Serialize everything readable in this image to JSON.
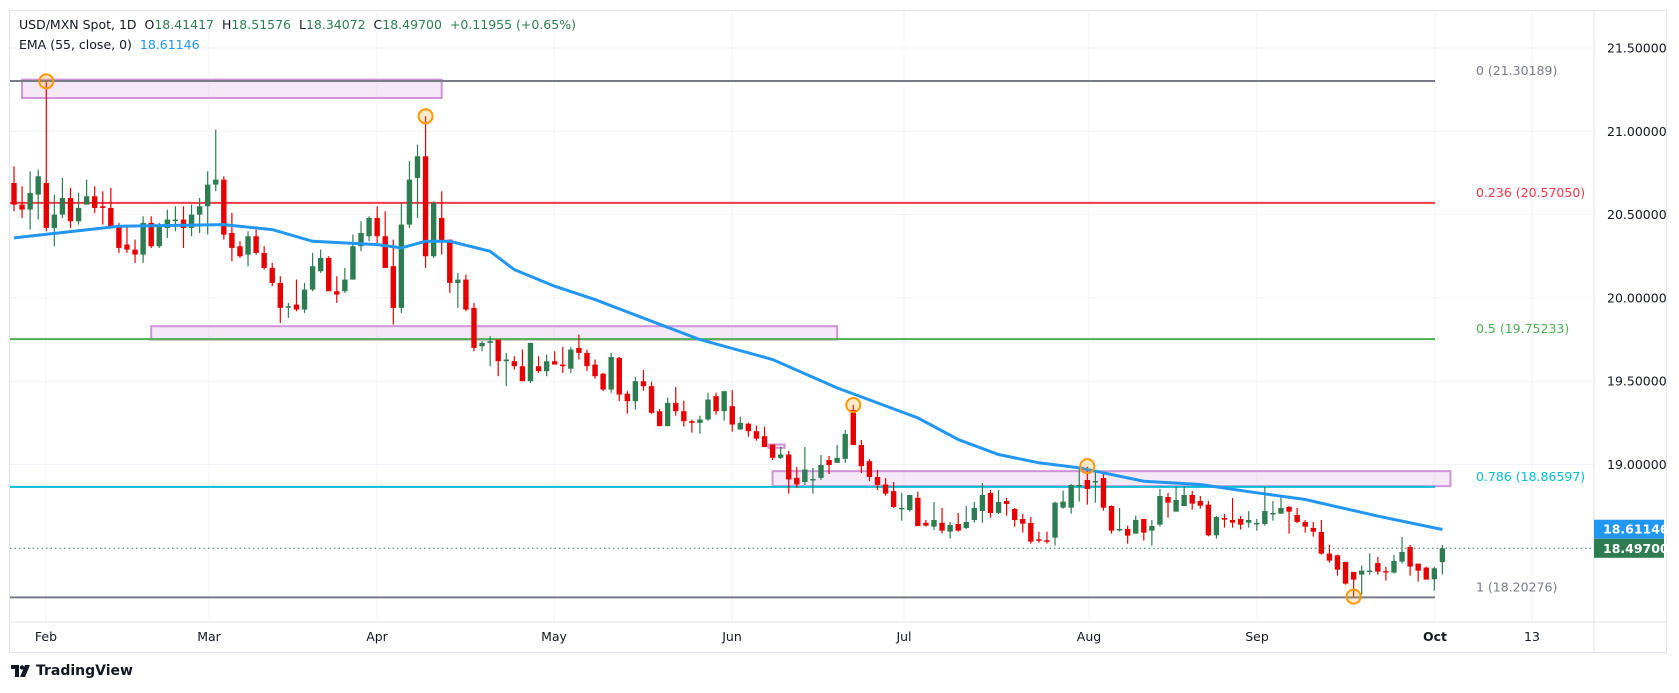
{
  "legend": {
    "symbol": "USD/MXN Spot, 1D",
    "o_label": "O",
    "o": "18.41417",
    "h_label": "H",
    "h": "18.51576",
    "l_label": "L",
    "l": "18.34072",
    "c_label": "C",
    "c": "18.49700",
    "change": "+0.11955 (+0.65%)",
    "ema_label": "EMA (55, close, 0)",
    "ema_value": "18.61146"
  },
  "colors": {
    "up": "#2e7d52",
    "down": "#e60000",
    "ema": "#2196f3",
    "last": "#2e7d52",
    "fib0": "#787b86",
    "fib236": "#f23645",
    "fib5": "#4caf50",
    "fib786": "#00bcd4",
    "fib1": "#787b86",
    "zone": "#ce93d8"
  },
  "branding": "TradingView",
  "chart_data": {
    "type": "candlestick",
    "title": "USD/MXN Spot, 1D",
    "ylim": [
      18.05,
      21.72
    ],
    "price_ticks": [
      "21.50000",
      "21.00000",
      "20.50000",
      "20.00000",
      "19.50000",
      "19.00000"
    ],
    "time_ticks": [
      "Feb",
      "Mar",
      "Apr",
      "May",
      "Jun",
      "Jul",
      "Aug",
      "Sep",
      "Oct",
      "13"
    ],
    "price_badges": [
      {
        "label": "18.61146",
        "value": 18.61146,
        "kind": "ema"
      },
      {
        "label": "18.49700",
        "value": 18.497,
        "kind": "last"
      }
    ],
    "fib_levels": [
      {
        "label": "0 (21.30189)",
        "value": 21.30189,
        "key": "fib0"
      },
      {
        "label": "0.236 (20.57050)",
        "value": 20.5705,
        "key": "fib236"
      },
      {
        "label": "0.5 (19.75233)",
        "value": 19.75233,
        "key": "fib5"
      },
      {
        "label": "0.786 (18.86597)",
        "value": 18.86597,
        "key": "fib786"
      },
      {
        "label": "1 (18.20276)",
        "value": 18.20276,
        "key": "fib1"
      }
    ],
    "zones": [
      {
        "from_bar": 2,
        "to_bar": 54,
        "high": 21.31,
        "low": 21.2
      },
      {
        "from_bar": 18,
        "to_bar": 103,
        "high": 19.83,
        "low": 19.75
      },
      {
        "from_bar": 95,
        "to_bar": 179,
        "high": 18.96,
        "low": 18.87
      },
      {
        "from_bar": 94.5,
        "to_bar": 96.5,
        "high": 19.12,
        "low": 19.1
      }
    ],
    "swing_markers": [
      {
        "bar": 5,
        "value": 21.3
      },
      {
        "bar": 52,
        "value": 21.09
      },
      {
        "bar": 105,
        "value": 19.357
      },
      {
        "bar": 134,
        "value": 18.99
      },
      {
        "bar": 167,
        "value": 18.207
      }
    ],
    "ema": [
      [
        1,
        20.36
      ],
      [
        14,
        20.43
      ],
      [
        27,
        20.44
      ],
      [
        33,
        20.41
      ],
      [
        38,
        20.34
      ],
      [
        46,
        20.32
      ],
      [
        49,
        20.3
      ],
      [
        52,
        20.34
      ],
      [
        55,
        20.34
      ],
      [
        60,
        20.28
      ],
      [
        63,
        20.17
      ],
      [
        68,
        20.07
      ],
      [
        73,
        19.99
      ],
      [
        80,
        19.86
      ],
      [
        86,
        19.75
      ],
      [
        95,
        19.63
      ],
      [
        103,
        19.46
      ],
      [
        108,
        19.37
      ],
      [
        113,
        19.28
      ],
      [
        118,
        19.15
      ],
      [
        123,
        19.06
      ],
      [
        128,
        19.01
      ],
      [
        133,
        18.98
      ],
      [
        141,
        18.9
      ],
      [
        148,
        18.88
      ],
      [
        155,
        18.83
      ],
      [
        161,
        18.79
      ],
      [
        170,
        18.69
      ],
      [
        175,
        18.64
      ],
      [
        178,
        18.61
      ]
    ],
    "ohlc": [
      [
        20.69,
        20.79,
        20.52,
        20.56
      ],
      [
        20.56,
        20.67,
        20.48,
        20.53
      ],
      [
        20.53,
        20.76,
        20.41,
        20.63
      ],
      [
        20.62,
        20.77,
        20.47,
        20.73
      ],
      [
        20.69,
        21.3,
        20.4,
        20.42
      ],
      [
        20.42,
        20.62,
        20.31,
        20.5
      ],
      [
        20.5,
        20.72,
        20.48,
        20.6
      ],
      [
        20.6,
        20.66,
        20.42,
        20.46
      ],
      [
        20.46,
        20.63,
        20.44,
        20.54
      ],
      [
        20.56,
        20.71,
        20.56,
        20.61
      ],
      [
        20.61,
        20.67,
        20.51,
        20.54
      ],
      [
        20.55,
        20.64,
        20.44,
        20.54
      ],
      [
        20.54,
        20.66,
        20.42,
        20.42
      ],
      [
        20.43,
        20.45,
        20.27,
        20.3
      ],
      [
        20.32,
        20.44,
        20.27,
        20.29
      ],
      [
        20.29,
        20.35,
        20.21,
        20.26
      ],
      [
        20.26,
        20.49,
        20.21,
        20.45
      ],
      [
        20.45,
        20.49,
        20.3,
        20.31
      ],
      [
        20.31,
        20.45,
        20.3,
        20.43
      ],
      [
        20.42,
        20.53,
        20.36,
        20.47
      ],
      [
        20.47,
        20.55,
        20.4,
        20.47
      ],
      [
        20.47,
        20.55,
        20.3,
        20.42
      ],
      [
        20.42,
        20.56,
        20.37,
        20.5
      ],
      [
        20.5,
        20.6,
        20.39,
        20.55
      ],
      [
        20.55,
        20.76,
        20.38,
        20.68
      ],
      [
        20.68,
        21.01,
        20.64,
        20.71
      ],
      [
        20.71,
        20.73,
        20.35,
        20.38
      ],
      [
        20.39,
        20.51,
        20.22,
        20.3
      ],
      [
        20.31,
        20.34,
        20.24,
        20.25
      ],
      [
        20.26,
        20.4,
        20.19,
        20.37
      ],
      [
        20.37,
        20.41,
        20.26,
        20.27
      ],
      [
        20.27,
        20.31,
        20.17,
        20.18
      ],
      [
        20.18,
        20.21,
        20.07,
        20.09
      ],
      [
        20.09,
        20.13,
        19.85,
        19.94
      ],
      [
        19.95,
        19.97,
        19.88,
        19.95
      ],
      [
        19.96,
        20.11,
        19.92,
        19.93
      ],
      [
        19.93,
        20.09,
        19.91,
        20.05
      ],
      [
        20.05,
        20.27,
        20.04,
        20.19
      ],
      [
        20.16,
        20.29,
        20.15,
        20.24
      ],
      [
        20.24,
        20.25,
        20.04,
        20.04
      ],
      [
        20.04,
        20.13,
        19.97,
        20.02
      ],
      [
        20.04,
        20.18,
        20.03,
        20.11
      ],
      [
        20.11,
        20.38,
        20.11,
        20.31
      ],
      [
        20.31,
        20.46,
        20.28,
        20.39
      ],
      [
        20.37,
        20.49,
        20.34,
        20.48
      ],
      [
        20.48,
        20.55,
        20.33,
        20.37
      ],
      [
        20.37,
        20.52,
        20.18,
        20.18
      ],
      [
        20.19,
        20.35,
        19.84,
        19.94
      ],
      [
        19.94,
        20.57,
        19.91,
        20.44
      ],
      [
        20.44,
        20.82,
        20.42,
        20.71
      ],
      [
        20.72,
        20.92,
        20.48,
        20.85
      ],
      [
        20.85,
        21.09,
        20.18,
        20.25
      ],
      [
        20.25,
        20.58,
        20.24,
        20.57
      ],
      [
        20.48,
        20.64,
        20.26,
        20.34
      ],
      [
        20.35,
        20.35,
        20.03,
        20.09
      ],
      [
        20.09,
        20.15,
        19.94,
        20.11
      ],
      [
        20.11,
        20.14,
        19.92,
        19.93
      ],
      [
        19.94,
        19.97,
        19.68,
        19.7
      ],
      [
        19.71,
        19.74,
        19.68,
        19.73
      ],
      [
        19.73,
        19.77,
        19.59,
        19.74
      ],
      [
        19.75,
        19.75,
        19.53,
        19.62
      ],
      [
        19.62,
        19.67,
        19.47,
        19.63
      ],
      [
        19.62,
        19.65,
        19.57,
        19.59
      ],
      [
        19.59,
        19.69,
        19.5,
        19.5
      ],
      [
        19.5,
        19.73,
        19.49,
        19.73
      ],
      [
        19.59,
        19.65,
        19.55,
        19.56
      ],
      [
        19.56,
        19.66,
        19.53,
        19.62
      ],
      [
        19.62,
        19.68,
        19.6,
        19.6
      ],
      [
        19.6,
        19.705,
        19.55,
        19.59
      ],
      [
        19.575,
        19.705,
        19.55,
        19.69
      ],
      [
        19.7,
        19.78,
        19.63,
        19.67
      ],
      [
        19.67,
        19.69,
        19.56,
        19.59
      ],
      [
        19.6,
        19.63,
        19.515,
        19.53
      ],
      [
        19.545,
        19.55,
        19.44,
        19.45
      ],
      [
        19.45,
        19.67,
        19.43,
        19.645
      ],
      [
        19.64,
        19.645,
        19.38,
        19.42
      ],
      [
        19.425,
        19.44,
        19.305,
        19.38
      ],
      [
        19.38,
        19.527,
        19.33,
        19.5
      ],
      [
        19.5,
        19.567,
        19.443,
        19.47
      ],
      [
        19.47,
        19.497,
        19.305,
        19.31
      ],
      [
        19.32,
        19.333,
        19.233,
        19.23
      ],
      [
        19.23,
        19.401,
        19.233,
        19.37
      ],
      [
        19.37,
        19.465,
        19.293,
        19.32
      ],
      [
        19.32,
        19.383,
        19.227,
        19.26
      ],
      [
        19.26,
        19.269,
        19.191,
        19.25
      ],
      [
        19.25,
        19.293,
        19.185,
        19.27
      ],
      [
        19.27,
        19.431,
        19.263,
        19.39
      ],
      [
        19.41,
        19.431,
        19.299,
        19.32
      ],
      [
        19.32,
        19.443,
        19.263,
        19.44
      ],
      [
        19.35,
        19.447,
        19.197,
        19.24
      ],
      [
        19.21,
        19.287,
        19.209,
        19.25
      ],
      [
        19.245,
        19.251,
        19.167,
        19.2
      ],
      [
        19.2,
        19.233,
        19.143,
        19.155
      ],
      [
        19.17,
        19.227,
        19.105,
        19.105
      ],
      [
        19.12,
        19.12,
        19.027,
        19.04
      ],
      [
        19.04,
        19.105,
        19.033,
        19.06
      ],
      [
        19.06,
        19.081,
        18.825,
        18.91
      ],
      [
        18.92,
        18.985,
        18.861,
        18.88
      ],
      [
        18.895,
        19.105,
        18.877,
        18.97
      ],
      [
        18.913,
        18.979,
        18.825,
        18.913
      ],
      [
        18.92,
        19.057,
        18.907,
        18.997
      ],
      [
        19.027,
        19.051,
        18.943,
        18.997
      ],
      [
        19.01,
        19.117,
        19.009,
        19.04
      ],
      [
        19.034,
        19.207,
        19.009,
        19.183
      ],
      [
        19.327,
        19.357,
        19.117,
        19.117
      ],
      [
        19.117,
        19.147,
        18.949,
        18.99
      ],
      [
        19.02,
        19.033,
        18.901,
        18.925
      ],
      [
        18.925,
        18.967,
        18.847,
        18.877
      ],
      [
        18.88,
        18.919,
        18.813,
        18.825
      ],
      [
        18.84,
        18.895,
        18.739,
        18.745
      ],
      [
        18.74,
        18.831,
        18.663,
        18.74
      ],
      [
        18.727,
        18.817,
        18.717,
        18.817
      ],
      [
        18.8,
        18.837,
        18.631,
        18.63
      ],
      [
        18.65,
        18.667,
        18.627,
        18.633
      ],
      [
        18.627,
        18.775,
        18.607,
        18.667
      ],
      [
        18.65,
        18.739,
        18.587,
        18.603
      ],
      [
        18.597,
        18.655,
        18.555,
        18.637
      ],
      [
        18.643,
        18.709,
        18.597,
        18.603
      ],
      [
        18.619,
        18.751,
        18.613,
        18.655
      ],
      [
        18.667,
        18.775,
        18.651,
        18.739
      ],
      [
        18.721,
        18.889,
        18.651,
        18.817
      ],
      [
        18.829,
        18.847,
        18.681,
        18.709
      ],
      [
        18.709,
        18.847,
        18.703,
        18.775
      ],
      [
        18.781,
        18.799,
        18.693,
        18.763
      ],
      [
        18.733,
        18.739,
        18.627,
        18.667
      ],
      [
        18.673,
        18.703,
        18.591,
        18.645
      ],
      [
        18.649,
        18.685,
        18.525,
        18.537
      ],
      [
        18.551,
        18.597,
        18.531,
        18.549
      ],
      [
        18.545,
        18.597,
        18.525,
        18.543
      ],
      [
        18.561,
        18.777,
        18.513,
        18.771
      ],
      [
        18.741,
        18.843,
        18.735,
        18.777
      ],
      [
        18.741,
        18.883,
        18.705,
        18.877
      ],
      [
        18.871,
        18.975,
        18.777,
        18.877
      ],
      [
        18.907,
        18.987,
        18.759,
        18.853
      ],
      [
        18.895,
        18.955,
        18.771,
        18.901
      ],
      [
        18.919,
        18.951,
        18.723,
        18.741
      ],
      [
        18.751,
        18.755,
        18.585,
        18.603
      ],
      [
        18.607,
        18.739,
        18.597,
        18.613
      ],
      [
        18.613,
        18.633,
        18.525,
        18.573
      ],
      [
        18.585,
        18.693,
        18.585,
        18.667
      ],
      [
        18.673,
        18.673,
        18.543,
        18.591
      ],
      [
        18.603,
        18.667,
        18.513,
        18.631
      ],
      [
        18.639,
        18.853,
        18.627,
        18.811
      ],
      [
        18.805,
        18.829,
        18.681,
        18.771
      ],
      [
        18.717,
        18.871,
        18.717,
        18.787
      ],
      [
        18.751,
        18.871,
        18.751,
        18.817
      ],
      [
        18.817,
        18.841,
        18.729,
        18.765
      ],
      [
        18.781,
        18.811,
        18.735,
        18.753
      ],
      [
        18.759,
        18.781,
        18.569,
        18.575
      ],
      [
        18.575,
        18.691,
        18.555,
        18.685
      ],
      [
        18.679,
        18.703,
        18.621,
        18.669
      ],
      [
        18.667,
        18.799,
        18.621,
        18.651
      ],
      [
        18.673,
        18.691,
        18.609,
        18.639
      ],
      [
        18.651,
        18.721,
        18.621,
        18.667
      ],
      [
        18.649,
        18.673,
        18.603,
        18.649
      ],
      [
        18.643,
        18.865,
        18.633,
        18.721
      ],
      [
        18.709,
        18.781,
        18.663,
        18.709
      ],
      [
        18.705,
        18.805,
        18.705,
        18.739
      ],
      [
        18.745,
        18.751,
        18.585,
        18.717
      ],
      [
        18.697,
        18.739,
        18.649,
        18.655
      ],
      [
        18.655,
        18.667,
        18.591,
        18.627
      ],
      [
        18.619,
        18.655,
        18.567,
        18.597
      ],
      [
        18.595,
        18.667,
        18.459,
        18.465
      ],
      [
        18.465,
        18.519,
        18.411,
        18.423
      ],
      [
        18.455,
        18.459,
        18.333,
        18.369
      ],
      [
        18.415,
        18.415,
        18.279,
        18.285
      ],
      [
        18.355,
        18.355,
        18.207,
        18.309
      ],
      [
        18.339,
        18.393,
        18.219,
        18.363
      ],
      [
        18.363,
        18.467,
        18.339,
        18.363
      ],
      [
        18.409,
        18.445,
        18.339,
        18.357
      ],
      [
        18.361,
        18.387,
        18.303,
        18.357
      ],
      [
        18.351,
        18.457,
        18.345,
        18.421
      ],
      [
        18.417,
        18.565,
        18.405,
        18.475
      ],
      [
        18.505,
        18.517,
        18.333,
        18.387
      ],
      [
        18.405,
        18.405,
        18.297,
        18.363
      ],
      [
        18.381,
        18.387,
        18.309,
        18.309
      ],
      [
        18.311,
        18.387,
        18.243,
        18.377
      ],
      [
        18.414,
        18.516,
        18.341,
        18.497
      ]
    ]
  }
}
